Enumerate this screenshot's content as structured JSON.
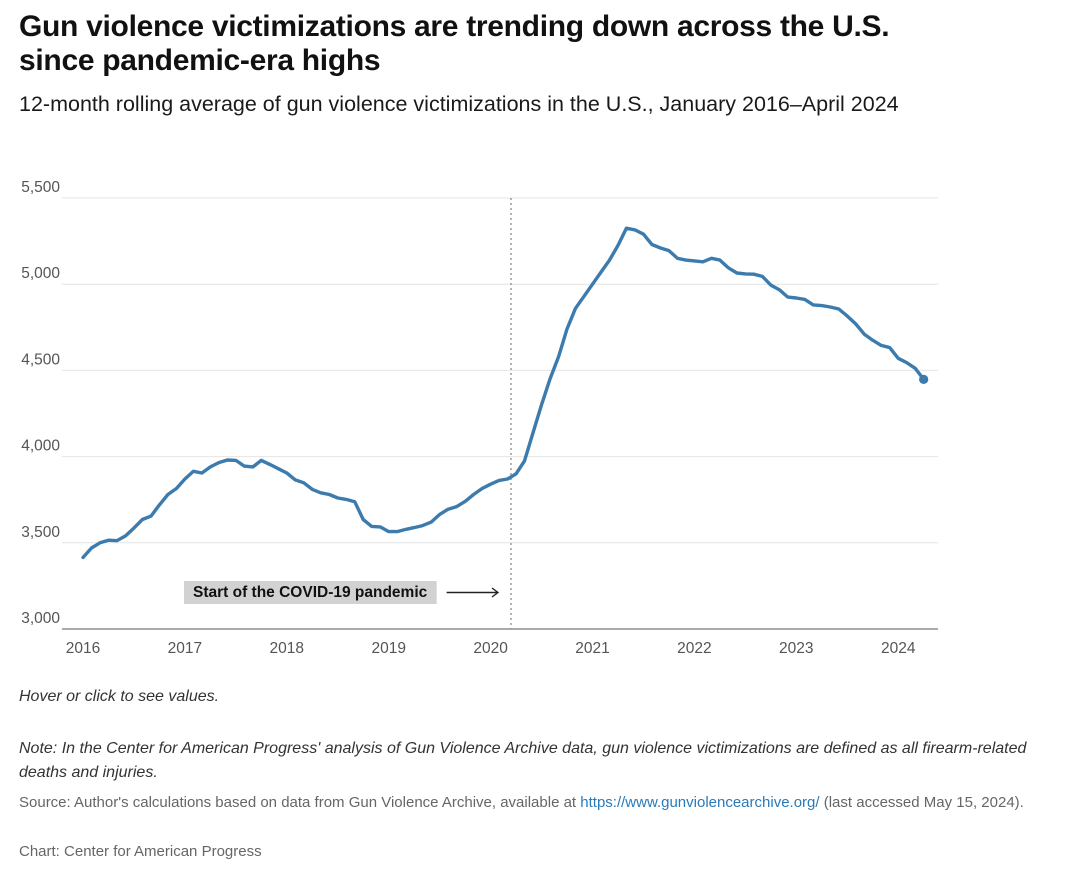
{
  "header": {
    "title_line1": "Gun violence victimizations are trending down across the U.S.",
    "title_line2": "since pandemic-era highs",
    "subtitle": "12-month rolling average of gun violence victimizations in the U.S., January 2016–April 2024"
  },
  "footer": {
    "hover_hint": "Hover or click to see values.",
    "note": "Note: In the Center for American Progress' analysis of Gun Violence Archive data, gun violence victimizations are defined as all firearm-related deaths and injuries.",
    "source_prefix": "Source: Author's calculations based on data from Gun Violence Archive, available at",
    "source_link": "https://www.gunviolencearchive.org/",
    "source_suffix": "(last accessed May 15, 2024).",
    "credit": "Chart: Center for American Progress"
  },
  "colors": {
    "line": "#3c7bad",
    "link": "#2a7ab8",
    "annotation_bg": "#d2d2d2"
  },
  "chart_data": {
    "type": "line",
    "title": "Gun violence victimizations are trending down across the U.S. since pandemic-era highs",
    "subtitle": "12-month rolling average of gun violence victimizations in the U.S., January 2016–April 2024",
    "xlabel": "",
    "ylabel": "",
    "xlim": [
      2016,
      2024.333
    ],
    "ylim": [
      3000,
      5500
    ],
    "yticks": [
      3000,
      3500,
      4000,
      4500,
      5000,
      5500
    ],
    "ytick_labels": [
      "3,000",
      "3,500",
      "4,000",
      "4,500",
      "5,000",
      "5,500"
    ],
    "xticks": [
      2016,
      2017,
      2018,
      2019,
      2020,
      2021,
      2022,
      2023,
      2024
    ],
    "xtick_labels": [
      "2016",
      "2017",
      "2018",
      "2019",
      "2020",
      "2021",
      "2022",
      "2023",
      "2024"
    ],
    "grid": true,
    "legend": "none",
    "annotation": {
      "label": "Start of the COVID-19 pandemic",
      "x": 2020.2
    },
    "series": [
      {
        "name": "12-month rolling average of gun violence victimizations",
        "x": [
          2016.0,
          2016.083,
          2016.167,
          2016.25,
          2016.333,
          2016.417,
          2016.5,
          2016.583,
          2016.667,
          2016.75,
          2016.833,
          2016.917,
          2017.0,
          2017.083,
          2017.167,
          2017.25,
          2017.333,
          2017.417,
          2017.5,
          2017.583,
          2017.667,
          2017.75,
          2017.833,
          2017.917,
          2018.0,
          2018.083,
          2018.167,
          2018.25,
          2018.333,
          2018.417,
          2018.5,
          2018.583,
          2018.667,
          2018.75,
          2018.833,
          2018.917,
          2019.0,
          2019.083,
          2019.167,
          2019.25,
          2019.333,
          2019.417,
          2019.5,
          2019.583,
          2019.667,
          2019.75,
          2019.833,
          2019.917,
          2020.0,
          2020.083,
          2020.167,
          2020.25,
          2020.333,
          2020.417,
          2020.5,
          2020.583,
          2020.667,
          2020.75,
          2020.833,
          2020.917,
          2021.0,
          2021.083,
          2021.167,
          2021.25,
          2021.333,
          2021.417,
          2021.5,
          2021.583,
          2021.667,
          2021.75,
          2021.833,
          2021.917,
          2022.0,
          2022.083,
          2022.167,
          2022.25,
          2022.333,
          2022.417,
          2022.5,
          2022.583,
          2022.667,
          2022.75,
          2022.833,
          2022.917,
          2023.0,
          2023.083,
          2023.167,
          2023.25,
          2023.333,
          2023.417,
          2023.5,
          2023.583,
          2023.667,
          2023.75,
          2023.833,
          2023.917,
          2024.0,
          2024.083,
          2024.167,
          2024.25
        ],
        "values": [
          3415,
          3470,
          3500,
          3515,
          3512,
          3540,
          3585,
          3635,
          3655,
          3720,
          3780,
          3815,
          3870,
          3915,
          3905,
          3940,
          3965,
          3980,
          3978,
          3945,
          3940,
          3978,
          3955,
          3930,
          3905,
          3865,
          3848,
          3810,
          3790,
          3780,
          3760,
          3752,
          3738,
          3635,
          3595,
          3592,
          3565,
          3565,
          3578,
          3588,
          3600,
          3620,
          3665,
          3695,
          3710,
          3740,
          3780,
          3815,
          3840,
          3862,
          3870,
          3900,
          3975,
          4140,
          4300,
          4450,
          4580,
          4740,
          4860,
          4930,
          5000,
          5070,
          5140,
          5225,
          5325,
          5315,
          5290,
          5230,
          5210,
          5195,
          5150,
          5140,
          5135,
          5130,
          5150,
          5140,
          5095,
          5065,
          5060,
          5058,
          5045,
          4995,
          4968,
          4925,
          4920,
          4912,
          4880,
          4876,
          4868,
          4856,
          4815,
          4770,
          4710,
          4675,
          4645,
          4632,
          4570,
          4545,
          4512,
          4448
        ]
      }
    ]
  }
}
